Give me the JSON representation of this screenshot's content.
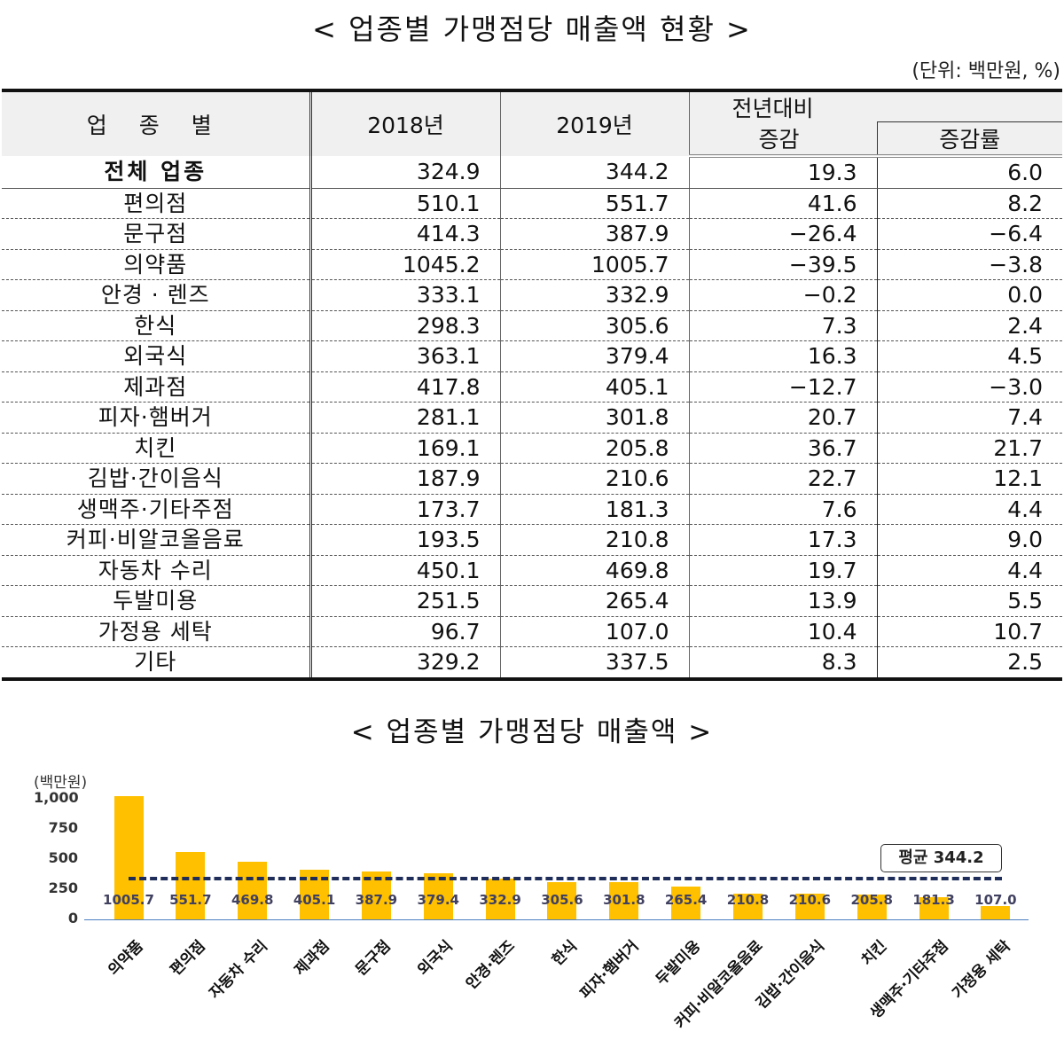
{
  "table_section": {
    "title": "< 업종별 가맹점당 매출액 현황 >",
    "unit": "(단위: 백만원, %)",
    "headers": {
      "category": "업 종 별",
      "y2018": "2018년",
      "y2019": "2019년",
      "change_group_line1": "전년대비",
      "change": "증감",
      "change_rate": "증감률"
    },
    "rows": [
      {
        "category": "전체 업종",
        "y2018": "324.9",
        "y2019": "344.2",
        "change": "19.3",
        "rate": "6.0"
      },
      {
        "category": "편의점",
        "y2018": "510.1",
        "y2019": "551.7",
        "change": "41.6",
        "rate": "8.2"
      },
      {
        "category": "문구점",
        "y2018": "414.3",
        "y2019": "387.9",
        "change": "−26.4",
        "rate": "−6.4"
      },
      {
        "category": "의약품",
        "y2018": "1045.2",
        "y2019": "1005.7",
        "change": "−39.5",
        "rate": "−3.8"
      },
      {
        "category": "안경 · 렌즈",
        "y2018": "333.1",
        "y2019": "332.9",
        "change": "−0.2",
        "rate": "0.0"
      },
      {
        "category": "한식",
        "y2018": "298.3",
        "y2019": "305.6",
        "change": "7.3",
        "rate": "2.4"
      },
      {
        "category": "외국식",
        "y2018": "363.1",
        "y2019": "379.4",
        "change": "16.3",
        "rate": "4.5"
      },
      {
        "category": "제과점",
        "y2018": "417.8",
        "y2019": "405.1",
        "change": "−12.7",
        "rate": "−3.0"
      },
      {
        "category": "피자·햄버거",
        "y2018": "281.1",
        "y2019": "301.8",
        "change": "20.7",
        "rate": "7.4"
      },
      {
        "category": "치킨",
        "y2018": "169.1",
        "y2019": "205.8",
        "change": "36.7",
        "rate": "21.7"
      },
      {
        "category": "김밥·간이음식",
        "y2018": "187.9",
        "y2019": "210.6",
        "change": "22.7",
        "rate": "12.1"
      },
      {
        "category": "생맥주·기타주점",
        "y2018": "173.7",
        "y2019": "181.3",
        "change": "7.6",
        "rate": "4.4"
      },
      {
        "category": "커피·비알코올음료",
        "y2018": "193.5",
        "y2019": "210.8",
        "change": "17.3",
        "rate": "9.0"
      },
      {
        "category": "자동차 수리",
        "y2018": "450.1",
        "y2019": "469.8",
        "change": "19.7",
        "rate": "4.4"
      },
      {
        "category": "두발미용",
        "y2018": "251.5",
        "y2019": "265.4",
        "change": "13.9",
        "rate": "5.5"
      },
      {
        "category": "가정용 세탁",
        "y2018": "96.7",
        "y2019": "107.0",
        "change": "10.4",
        "rate": "10.7"
      },
      {
        "category": "기타",
        "y2018": "329.2",
        "y2019": "337.5",
        "change": "8.3",
        "rate": "2.5"
      }
    ]
  },
  "chart_data": {
    "type": "bar",
    "title": "< 업종별 가맹점당 매출액 >",
    "ylabel": "(백만원)",
    "xlabel": "",
    "ylim": [
      0,
      1000
    ],
    "yticks": [
      "1,000",
      "750",
      "500",
      "250",
      "0"
    ],
    "grid": false,
    "categories": [
      "의약품",
      "편의점",
      "자동차 수리",
      "제과점",
      "문구점",
      "외국식",
      "안경·렌즈",
      "한식",
      "피자·햄버거",
      "두발미용",
      "커피·비알코올음료",
      "김밥·간이음식",
      "치킨",
      "생맥주·기타주점",
      "가정용 세탁"
    ],
    "values": [
      1005.7,
      551.7,
      469.8,
      405.1,
      387.9,
      379.4,
      332.9,
      305.6,
      301.8,
      265.4,
      210.8,
      210.6,
      205.8,
      181.3,
      107.0
    ],
    "value_labels": [
      "1005.7",
      "551.7",
      "469.8",
      "405.1",
      "387.9",
      "379.4",
      "332.9",
      "305.6",
      "301.8",
      "265.4",
      "210.8",
      "210.6",
      "205.8",
      "181.3",
      "107.0"
    ],
    "reference_line": {
      "label": "평균 344.2",
      "value": 344.2,
      "style": "dashed",
      "color": "#1f2d5a"
    },
    "bar_color": "#ffc000",
    "axis_color": "#4a7fc0"
  }
}
